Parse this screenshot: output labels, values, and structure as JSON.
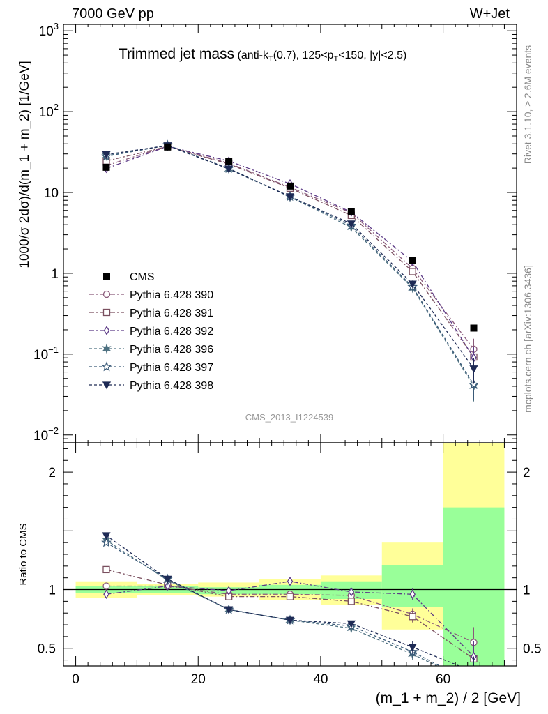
{
  "header": {
    "left": "7000 GeV pp",
    "right": "W+Jet",
    "title_main": "Trimmed jet mass",
    "title_detail": "(anti-k_T(0.7), 125<p_T<150, |y|<2.5)",
    "analysis_id": "CMS_2013_I1224539",
    "rivet_note": "Rivet 3.1.10, ≥ 2.6M events",
    "mcplots_note": "mcplots.cern.ch [arXiv:1306.3436]"
  },
  "chart_data": [
    {
      "type": "line",
      "panel": "main",
      "yscale": "log",
      "ylabel": "1000/σ 2dσ)/d(m_1 + m_2) [1/GeV]",
      "xlim": [
        -2,
        72
      ],
      "ylim": [
        0.008,
        1200
      ],
      "y_ticks": [
        {
          "value": 0.01,
          "base": "10",
          "exp": "−2"
        },
        {
          "value": 0.1,
          "base": "10",
          "exp": "−1"
        },
        {
          "value": 1,
          "base": "1",
          "exp": ""
        },
        {
          "value": 10,
          "base": "10",
          "exp": ""
        },
        {
          "value": 100,
          "base": "10",
          "exp": "2"
        },
        {
          "value": 1000,
          "base": "10",
          "exp": "3"
        }
      ],
      "x": [
        5,
        15,
        25,
        35,
        45,
        55,
        65
      ],
      "data_series": {
        "name": "CMS",
        "color": "#000000",
        "values": [
          20.5,
          36.5,
          24.0,
          12.0,
          5.8,
          1.45,
          0.21
        ]
      },
      "series": [
        {
          "name": "Pythia 6.428 390",
          "color": "#8a5a7a",
          "marker": "circle",
          "dash": "7,3,2,3",
          "values": [
            21.5,
            37.5,
            23.0,
            11.6,
            5.6,
            1.15,
            0.115
          ]
        },
        {
          "name": "Pythia 6.428 391",
          "color": "#7a4f5f",
          "marker": "square",
          "dash": "7,3,2,3",
          "values": [
            24.5,
            37.0,
            22.5,
            11.3,
            5.2,
            1.05,
            0.092
          ]
        },
        {
          "name": "Pythia 6.428 392",
          "color": "#5c3a86",
          "marker": "diamond",
          "dash": "7,3,2,3",
          "values": [
            19.8,
            37.2,
            24.5,
            12.8,
            5.7,
            1.4,
            0.09
          ]
        },
        {
          "name": "Pythia 6.428 396",
          "color": "#4d7080",
          "marker": "star6",
          "dash": "4,3",
          "values": [
            28.5,
            38.0,
            19.5,
            8.8,
            3.7,
            0.66,
            0.04
          ]
        },
        {
          "name": "Pythia 6.428 397",
          "color": "#3a5a78",
          "marker": "star5",
          "dash": "4,3",
          "values": [
            28.0,
            38.5,
            19.8,
            8.9,
            3.9,
            0.68,
            0.042
          ]
        },
        {
          "name": "Pythia 6.428 398",
          "color": "#1e2a55",
          "marker": "tri_down",
          "dash": "4,3",
          "values": [
            29.5,
            38.0,
            19.6,
            8.9,
            4.1,
            0.74,
            0.066
          ]
        }
      ]
    },
    {
      "type": "line",
      "panel": "ratio",
      "ylabel": "Ratio to CMS",
      "xlabel": "(m_1 + m_2) / 2 [GeV]",
      "xlim": [
        -2,
        72
      ],
      "ylim": [
        0.35,
        2.25
      ],
      "x_ticks": [
        0,
        20,
        40,
        60
      ],
      "y_ticks": [
        0.5,
        1,
        2
      ],
      "bins": [
        0,
        10,
        20,
        30,
        40,
        50,
        60,
        70
      ],
      "band_yellow": [
        [
          0.93,
          1.07
        ],
        [
          0.95,
          1.05
        ],
        [
          0.94,
          1.06
        ],
        [
          0.91,
          1.09
        ],
        [
          0.87,
          1.12
        ],
        [
          0.66,
          1.4
        ],
        [
          0.2,
          2.32
        ]
      ],
      "band_green": [
        [
          0.97,
          1.03
        ],
        [
          0.97,
          1.03
        ],
        [
          0.96,
          1.02
        ],
        [
          0.96,
          1.04
        ],
        [
          0.92,
          1.07
        ],
        [
          0.85,
          1.21
        ],
        [
          0.3,
          1.7
        ]
      ],
      "x": [
        5,
        15,
        25,
        35,
        45,
        55,
        65
      ],
      "series": [
        {
          "name": "Pythia 6.428 390",
          "values": [
            1.03,
            1.03,
            0.96,
            0.96,
            0.95,
            0.79,
            0.55
          ]
        },
        {
          "name": "Pythia 6.428 391",
          "values": [
            1.17,
            1.04,
            0.94,
            0.94,
            0.9,
            0.77,
            0.41
          ]
        },
        {
          "name": "Pythia 6.428 392",
          "values": [
            0.96,
            1.03,
            0.99,
            1.07,
            0.98,
            0.96,
            0.43
          ]
        },
        {
          "name": "Pythia 6.428 396",
          "values": [
            1.42,
            1.08,
            0.83,
            0.74,
            0.67,
            0.45,
            0.2
          ]
        },
        {
          "name": "Pythia 6.428 397",
          "values": [
            1.4,
            1.09,
            0.83,
            0.74,
            0.69,
            0.47,
            0.2
          ]
        },
        {
          "name": "Pythia 6.428 398",
          "values": [
            1.46,
            1.09,
            0.83,
            0.74,
            0.71,
            0.51,
            0.3
          ]
        }
      ]
    }
  ]
}
